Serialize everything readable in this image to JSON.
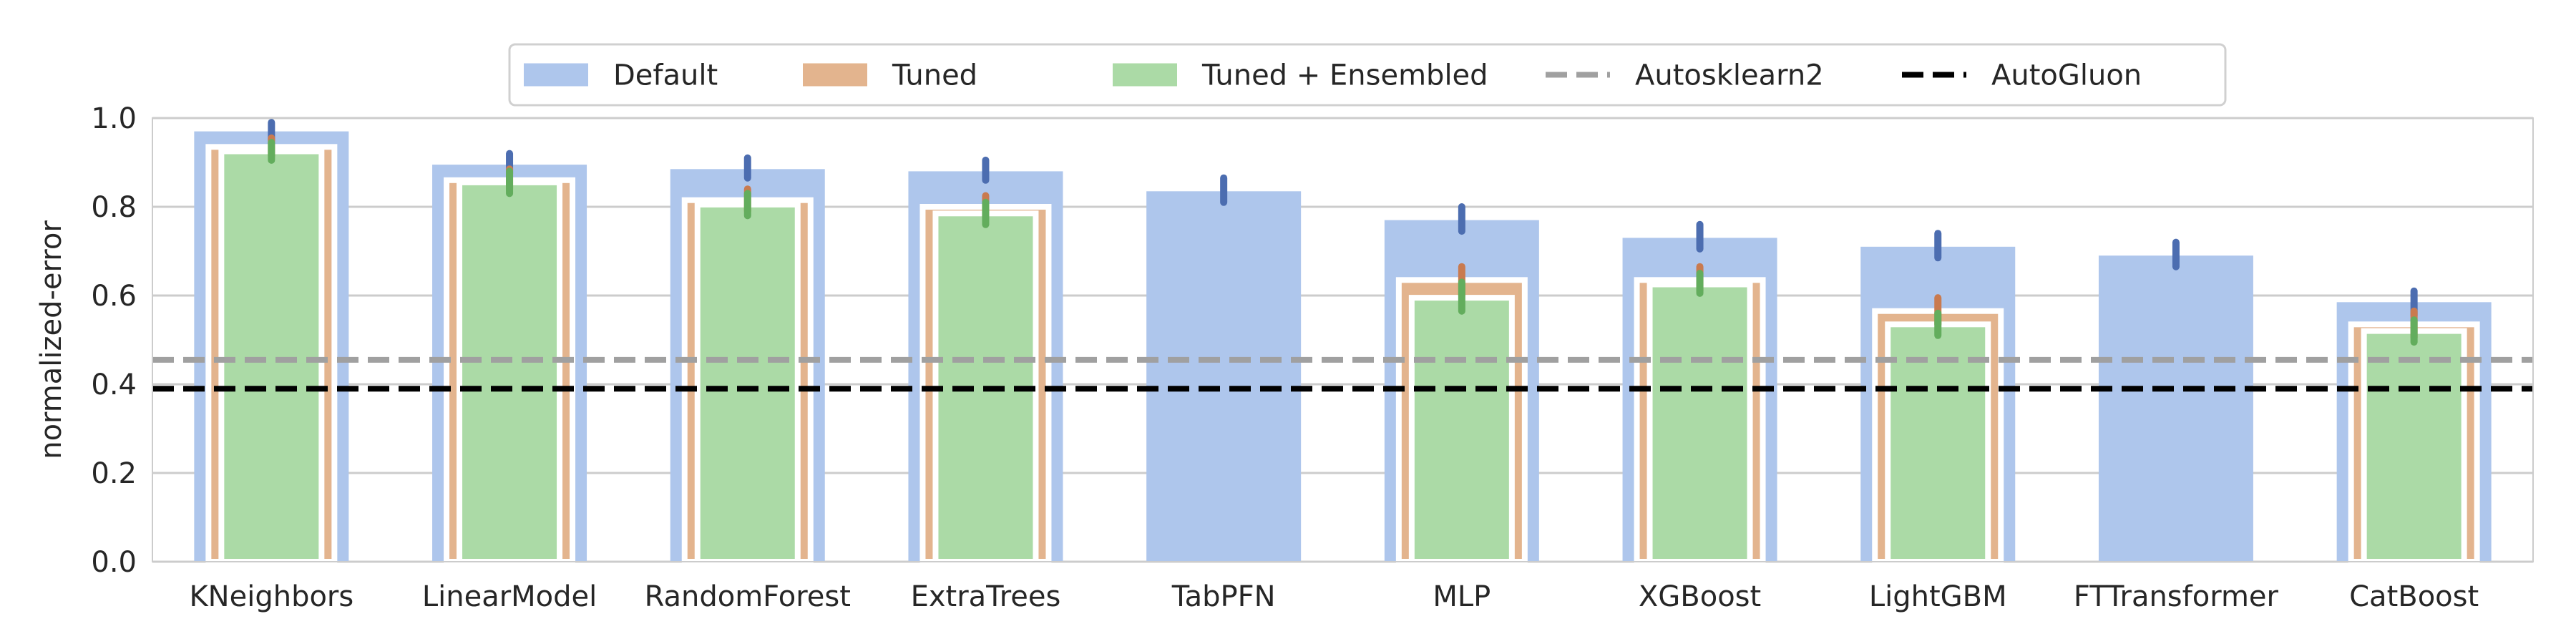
{
  "chart_data": {
    "type": "bar",
    "title": "",
    "xlabel": "",
    "ylabel": "normalized-error",
    "ylim": [
      0.0,
      1.0
    ],
    "yticks": [
      "0.0",
      "0.2",
      "0.4",
      "0.6",
      "0.8",
      "1.0"
    ],
    "grid": "horizontal",
    "legend_position": "top-center",
    "categories": [
      "KNeighbors",
      "LinearModel",
      "RandomForest",
      "ExtraTrees",
      "TabPFN",
      "MLP",
      "XGBoost",
      "LightGBM",
      "FTTransformer",
      "CatBoost"
    ],
    "series": [
      {
        "name": "Default",
        "color": "#aec6ec",
        "err_color": "#4c6db0",
        "values": [
          0.97,
          0.895,
          0.885,
          0.88,
          0.835,
          0.77,
          0.73,
          0.71,
          0.69,
          0.585
        ],
        "err_low": [
          0.95,
          0.875,
          0.865,
          0.86,
          0.81,
          0.745,
          0.705,
          0.685,
          0.665,
          0.555
        ],
        "err_high": [
          0.99,
          0.92,
          0.91,
          0.905,
          0.865,
          0.8,
          0.76,
          0.74,
          0.72,
          0.61
        ]
      },
      {
        "name": "Tuned",
        "color": "#e3b48e",
        "err_color": "#c97a4f",
        "values": [
          0.935,
          0.86,
          0.815,
          0.8,
          null,
          0.635,
          0.635,
          0.565,
          null,
          0.535
        ],
        "err_low": [
          0.915,
          0.84,
          0.79,
          0.775,
          null,
          0.6,
          0.61,
          0.535,
          null,
          0.505
        ],
        "err_high": [
          0.955,
          0.885,
          0.84,
          0.825,
          null,
          0.665,
          0.665,
          0.595,
          null,
          0.565
        ]
      },
      {
        "name": "Tuned + Ensembled",
        "color": "#abdaa6",
        "err_color": "#63ad5d",
        "values": [
          0.925,
          0.855,
          0.805,
          0.785,
          null,
          0.595,
          0.625,
          0.535,
          null,
          0.52
        ],
        "err_low": [
          0.905,
          0.83,
          0.78,
          0.76,
          null,
          0.565,
          0.605,
          0.51,
          null,
          0.495
        ],
        "err_high": [
          0.945,
          0.88,
          0.83,
          0.81,
          null,
          0.63,
          0.65,
          0.56,
          null,
          0.545
        ]
      }
    ],
    "reference_lines": [
      {
        "name": "Autosklearn2",
        "value": 0.455,
        "color": "#a0a0a0",
        "style": "dashed"
      },
      {
        "name": "AutoGluon",
        "value": 0.39,
        "color": "#000000",
        "style": "dashed"
      }
    ]
  }
}
